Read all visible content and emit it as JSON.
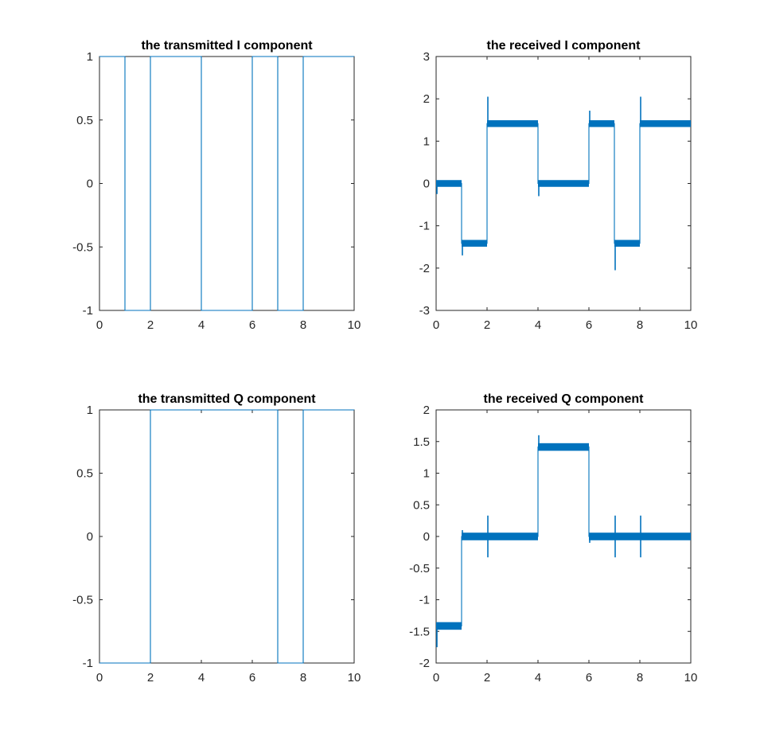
{
  "figure": {
    "background": "#ffffff",
    "line_color": "#0072bd"
  },
  "chart_data": [
    {
      "id": "tx-i",
      "type": "line",
      "title": "the transmitted I component",
      "xlabel": "",
      "ylabel": "",
      "xlim": [
        0,
        10
      ],
      "ylim": [
        -1,
        1
      ],
      "xticks": [
        0,
        2,
        4,
        6,
        8,
        10
      ],
      "yticks": [
        -1,
        -0.5,
        0,
        0.5,
        1
      ],
      "ytick_labels": [
        "-1",
        "-0.5",
        "0",
        "0.5",
        "1"
      ],
      "grid": false,
      "series": [
        {
          "x": [
            0,
            1,
            1,
            2,
            2,
            4,
            4,
            6,
            6,
            7,
            7,
            8,
            8,
            10
          ],
          "y": [
            1,
            1,
            -1,
            -1,
            1,
            1,
            -1,
            -1,
            1,
            1,
            -1,
            -1,
            1,
            1
          ]
        }
      ]
    },
    {
      "id": "rx-i",
      "type": "line",
      "title": "the received I component",
      "xlabel": "",
      "ylabel": "",
      "xlim": [
        0,
        10
      ],
      "ylim": [
        -3,
        3
      ],
      "xticks": [
        0,
        2,
        4,
        6,
        8,
        10
      ],
      "yticks": [
        -3,
        -2,
        -1,
        0,
        1,
        2,
        3
      ],
      "ytick_labels": [
        "-3",
        "-2",
        "-1",
        "0",
        "1",
        "2",
        "3"
      ],
      "grid": false,
      "band_halfwidth": 0.08,
      "series": [
        {
          "segments": [
            {
              "x0": 0,
              "x1": 1,
              "y": 0
            },
            {
              "x0": 1,
              "x1": 2,
              "y": -1.414
            },
            {
              "x0": 2,
              "x1": 4,
              "y": 1.414
            },
            {
              "x0": 4,
              "x1": 6,
              "y": 0
            },
            {
              "x0": 6,
              "x1": 7,
              "y": 1.414
            },
            {
              "x0": 7,
              "x1": 8,
              "y": -1.414
            },
            {
              "x0": 8,
              "x1": 10,
              "y": 1.414
            }
          ],
          "overshoots": [
            {
              "x": 0,
              "y": -0.25
            },
            {
              "x": 1,
              "y": -1.7
            },
            {
              "x": 2,
              "y": 2.05
            },
            {
              "x": 4,
              "y": -0.3
            },
            {
              "x": 6,
              "y": 1.72
            },
            {
              "x": 7,
              "y": -2.05
            },
            {
              "x": 8,
              "y": 2.05
            }
          ]
        }
      ]
    },
    {
      "id": "tx-q",
      "type": "line",
      "title": "the transmitted Q component",
      "xlabel": "",
      "ylabel": "",
      "xlim": [
        0,
        10
      ],
      "ylim": [
        -1,
        1
      ],
      "xticks": [
        0,
        2,
        4,
        6,
        8,
        10
      ],
      "yticks": [
        -1,
        -0.5,
        0,
        0.5,
        1
      ],
      "ytick_labels": [
        "-1",
        "-0.5",
        "0",
        "0.5",
        "1"
      ],
      "grid": false,
      "series": [
        {
          "x": [
            0,
            2,
            2,
            7,
            7,
            8,
            8,
            10
          ],
          "y": [
            -1,
            -1,
            1,
            1,
            -1,
            -1,
            1,
            1
          ]
        }
      ]
    },
    {
      "id": "rx-q",
      "type": "line",
      "title": "the received Q component",
      "xlabel": "",
      "ylabel": "",
      "xlim": [
        0,
        10
      ],
      "ylim": [
        -2,
        2
      ],
      "xticks": [
        0,
        2,
        4,
        6,
        8,
        10
      ],
      "yticks": [
        -2,
        -1.5,
        -1,
        -0.5,
        0,
        0.5,
        1,
        1.5,
        2
      ],
      "ytick_labels": [
        "-2",
        "-1.5",
        "-1",
        "-0.5",
        "0",
        "0.5",
        "1",
        "1.5",
        "2"
      ],
      "grid": false,
      "band_halfwidth": 0.06,
      "series": [
        {
          "segments": [
            {
              "x0": 0,
              "x1": 1,
              "y": -1.414
            },
            {
              "x0": 1,
              "x1": 4,
              "y": 0
            },
            {
              "x0": 4,
              "x1": 6,
              "y": 1.414
            },
            {
              "x0": 6,
              "x1": 10,
              "y": 0
            }
          ],
          "overshoots": [
            {
              "x": 0,
              "y": -1.75
            },
            {
              "x": 1,
              "y": 0.1
            },
            {
              "x": 2,
              "y": 0.33
            },
            {
              "x": 2,
              "y": -0.33
            },
            {
              "x": 4,
              "y": 1.6
            },
            {
              "x": 6,
              "y": -0.1
            },
            {
              "x": 7,
              "y": 0.33
            },
            {
              "x": 7,
              "y": -0.33
            },
            {
              "x": 8,
              "y": 0.33
            },
            {
              "x": 8,
              "y": -0.33
            }
          ]
        }
      ]
    }
  ]
}
